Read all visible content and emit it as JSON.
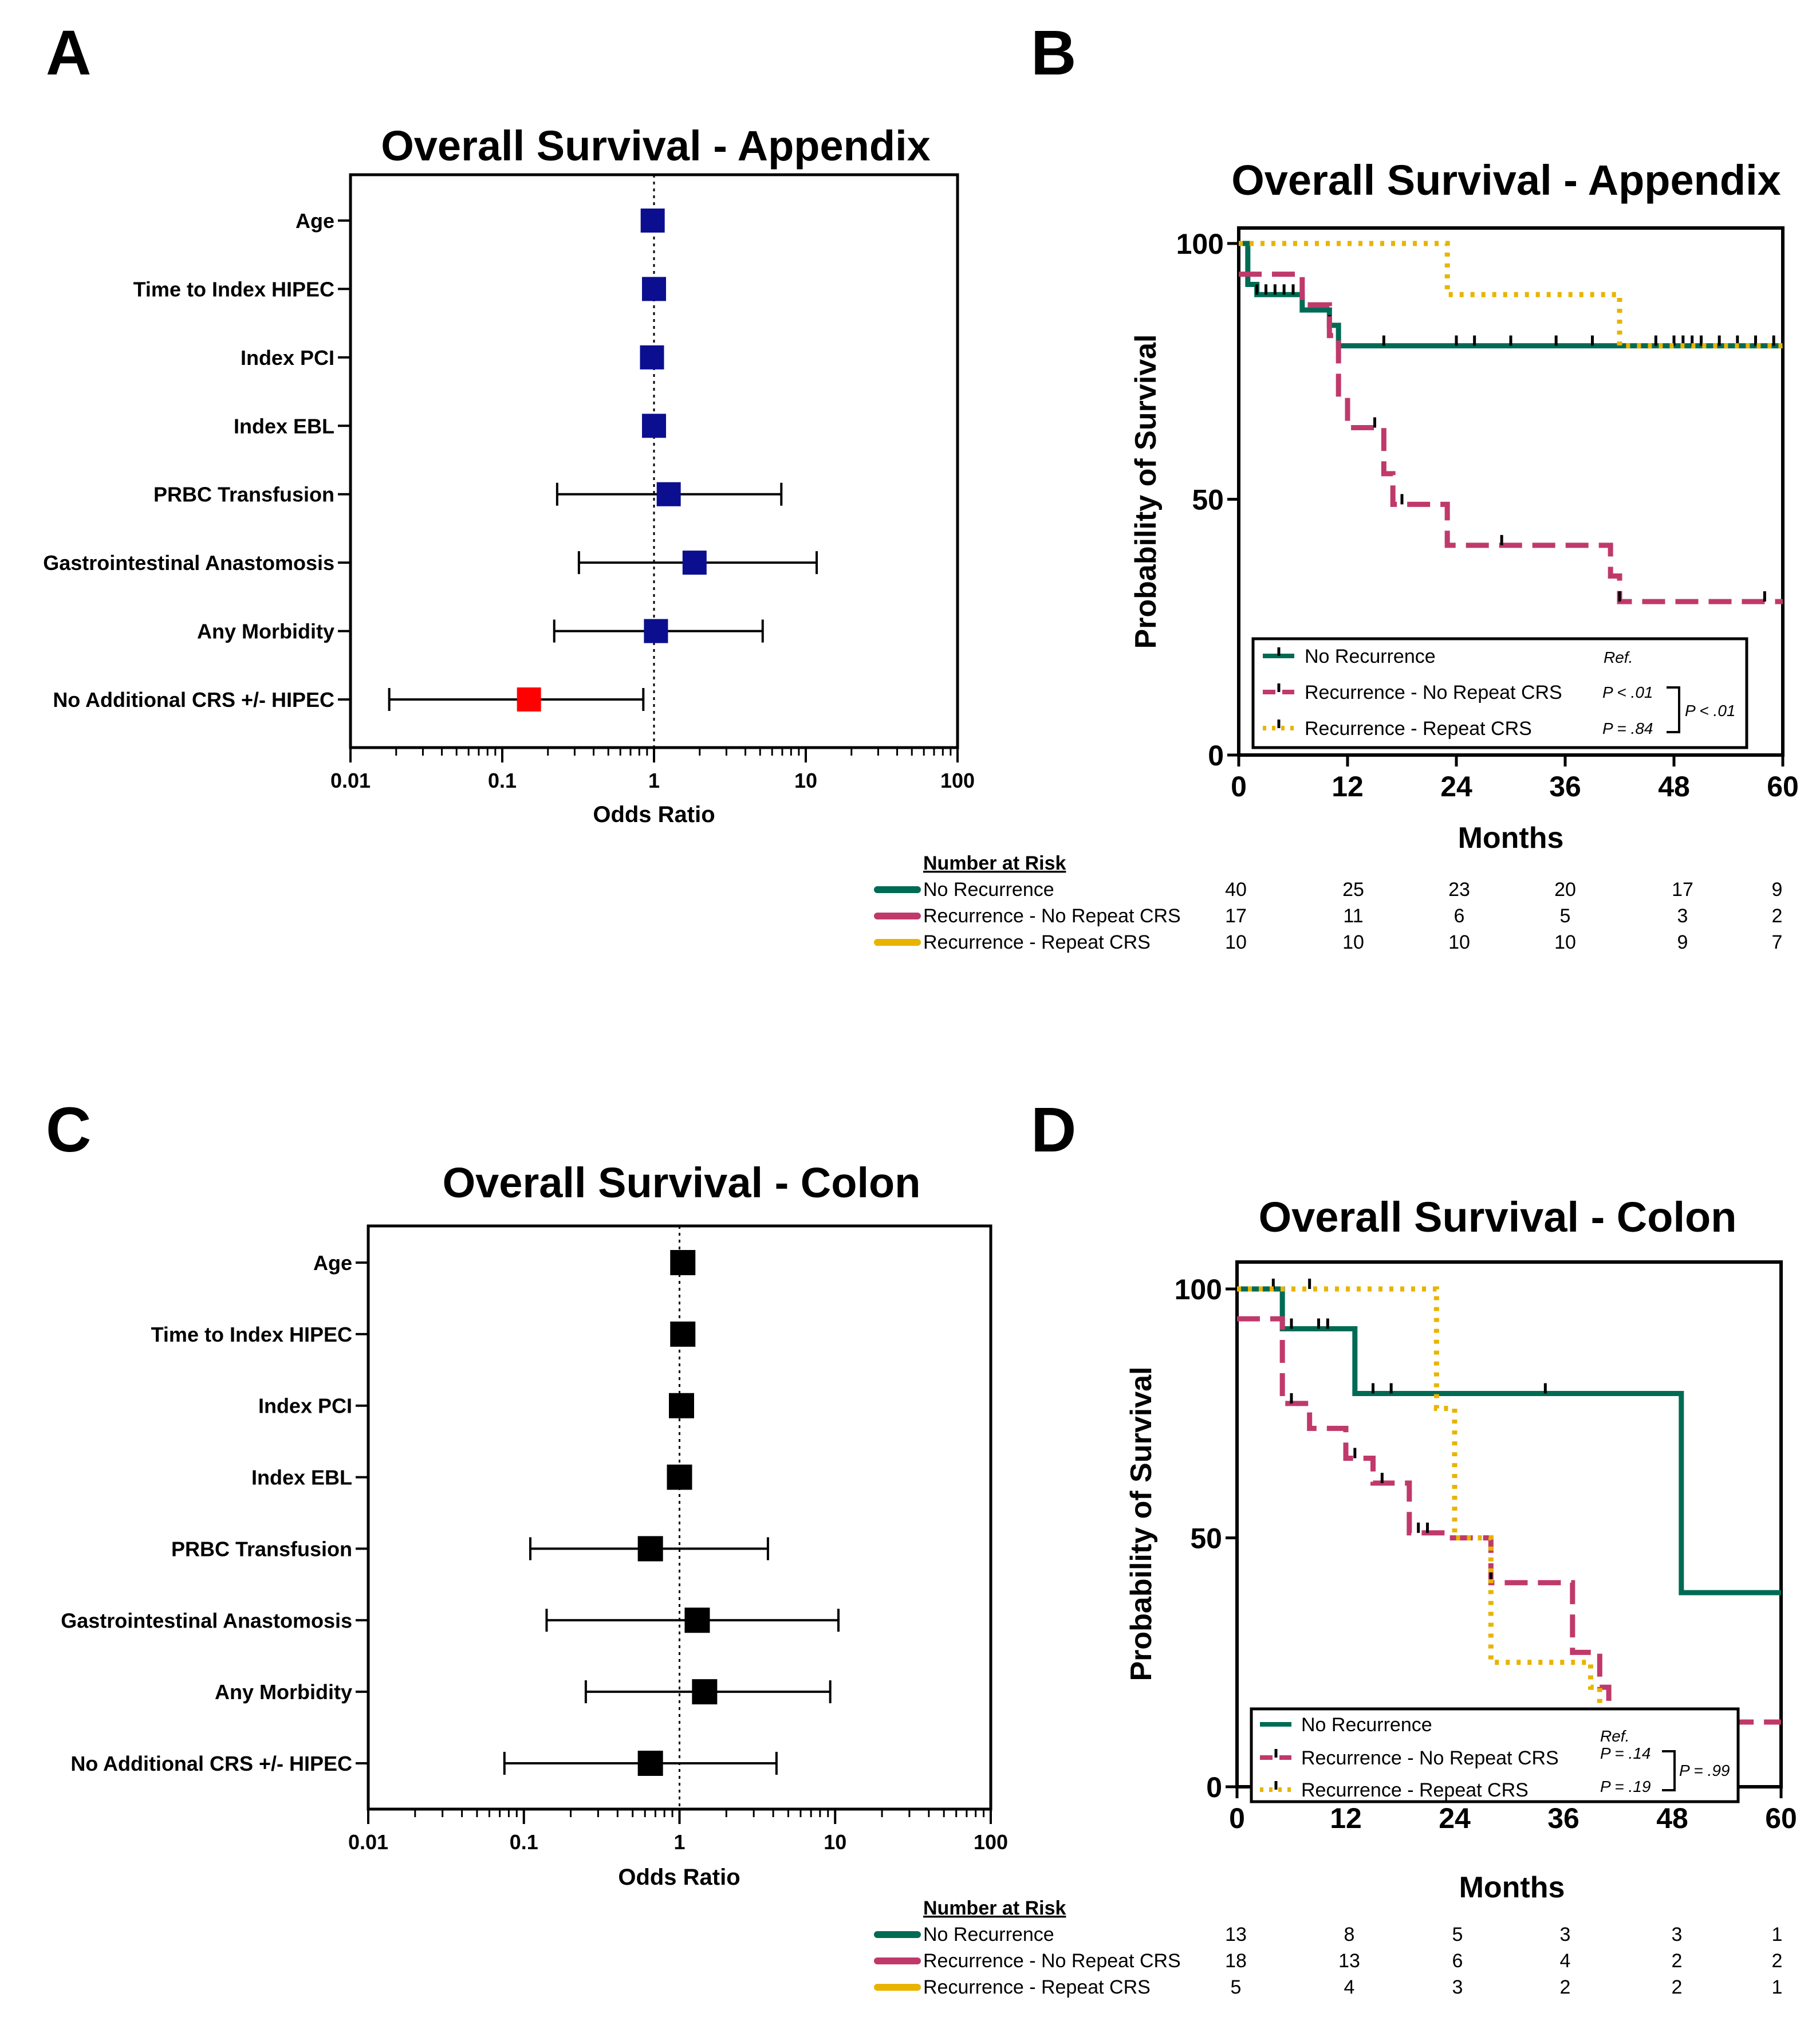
{
  "panels": {
    "A": {
      "letter": "A",
      "title": "Overall Survival - Appendix",
      "x_axis_title": "Odds Ratio",
      "x_ticks": [
        "0.01",
        "0.1",
        "1",
        "10",
        "100"
      ]
    },
    "B": {
      "letter": "B",
      "title": "Overall Survival - Appendix",
      "x_axis_title": "Months",
      "y_axis_title": "Probability of Survival",
      "x_ticks": [
        "0",
        "12",
        "24",
        "36",
        "48",
        "60"
      ],
      "y_ticks": [
        "0",
        "50",
        "100"
      ],
      "legend": [
        {
          "label": "No Recurrence",
          "p": "Ref."
        },
        {
          "label": "Recurrence - No Repeat CRS",
          "p": "P < .01"
        },
        {
          "label": "Recurrence - Repeat CRS",
          "p": "P = .84"
        }
      ],
      "bracket_p": "P < .01",
      "risk_title": "Number at Risk",
      "risk_rows": [
        {
          "label": "No Recurrence",
          "values": [
            "40",
            "25",
            "23",
            "20",
            "17",
            "9"
          ]
        },
        {
          "label": "Recurrence - No Repeat CRS",
          "values": [
            "17",
            "11",
            "6",
            "5",
            "3",
            "2"
          ]
        },
        {
          "label": "Recurrence - Repeat CRS",
          "values": [
            "10",
            "10",
            "10",
            "10",
            "9",
            "7"
          ]
        }
      ]
    },
    "C": {
      "letter": "C",
      "title": "Overall Survival - Colon",
      "x_axis_title": "Odds Ratio",
      "x_ticks": [
        "0.01",
        "0.1",
        "1",
        "10",
        "100"
      ]
    },
    "D": {
      "letter": "D",
      "title": "Overall Survival - Colon",
      "x_axis_title": "Months",
      "y_axis_title": "Probability of Survival",
      "x_ticks": [
        "0",
        "12",
        "24",
        "36",
        "48",
        "60"
      ],
      "y_ticks": [
        "0",
        "50",
        "100"
      ],
      "legend": [
        {
          "label": "No Recurrence",
          "p": "Ref."
        },
        {
          "label": "Recurrence - No Repeat CRS",
          "p": "P = .14"
        },
        {
          "label": "Recurrence - Repeat CRS",
          "p": "P = .19"
        }
      ],
      "bracket_p": "P = .99",
      "risk_title": "Number at Risk",
      "risk_rows": [
        {
          "label": "No Recurrence",
          "values": [
            "13",
            "8",
            "5",
            "3",
            "3",
            "1"
          ]
        },
        {
          "label": "Recurrence - No Repeat CRS",
          "values": [
            "18",
            "13",
            "6",
            "4",
            "2",
            "2"
          ]
        },
        {
          "label": "Recurrence - Repeat CRS",
          "values": [
            "5",
            "4",
            "3",
            "2",
            "2",
            "1"
          ]
        }
      ]
    }
  },
  "colors": {
    "no_recurrence": "#006b54",
    "recurrence_no_repeat": "#c0396b",
    "recurrence_repeat": "#e8b400",
    "appendix_marker": "#0b0f8f",
    "appendix_sig_marker": "#ff0000",
    "colon_marker": "#000000"
  },
  "chart_data": [
    {
      "type": "scatter",
      "subtype": "forest",
      "title": "Overall Survival - Appendix",
      "xlabel": "Odds Ratio",
      "xscale": "log",
      "xlim": [
        0.01,
        100
      ],
      "reference_line": 1,
      "categories": [
        "Age",
        "Time to Index HIPEC",
        "Index PCI",
        "Index EBL",
        "PRBC Transfusion",
        "Gastrointestinal Anastomosis",
        "Any Morbidity",
        "No Additional CRS +/- HIPEC"
      ],
      "odds_ratio": [
        0.98,
        1.0,
        0.97,
        1.0,
        1.25,
        1.85,
        1.03,
        0.15
      ],
      "ci_low": [
        null,
        null,
        null,
        null,
        0.23,
        0.32,
        0.22,
        0.018
      ],
      "ci_high": [
        null,
        null,
        null,
        null,
        6.9,
        11.8,
        5.2,
        0.85
      ],
      "significant": [
        false,
        false,
        false,
        false,
        false,
        false,
        false,
        true
      ]
    },
    {
      "type": "line",
      "subtype": "kaplan-meier",
      "title": "Overall Survival - Appendix",
      "xlabel": "Months",
      "ylabel": "Probability of Survival",
      "xlim": [
        0,
        60
      ],
      "ylim": [
        0,
        100
      ],
      "series": [
        {
          "name": "No Recurrence",
          "steps": [
            [
              0,
              100
            ],
            [
              1,
              92
            ],
            [
              2,
              90
            ],
            [
              7,
              87
            ],
            [
              10,
              84
            ],
            [
              11,
              80
            ],
            [
              60,
              80
            ]
          ],
          "censor_times": [
            2,
            3,
            4,
            5,
            6,
            10,
            16,
            24,
            26,
            30,
            35,
            39,
            46,
            48,
            49,
            50,
            51,
            53,
            55,
            57,
            59,
            60
          ]
        },
        {
          "name": "Recurrence - No Repeat CRS",
          "steps": [
            [
              0,
              94
            ],
            [
              3,
              94
            ],
            [
              7,
              88
            ],
            [
              10,
              82
            ],
            [
              11,
              70
            ],
            [
              12,
              64
            ],
            [
              16,
              55
            ],
            [
              17,
              49
            ],
            [
              23,
              41
            ],
            [
              41,
              35
            ],
            [
              42,
              30
            ],
            [
              60,
              30
            ]
          ],
          "censor_times": [
            15,
            18,
            29,
            42,
            58
          ]
        },
        {
          "name": "Recurrence - Repeat CRS",
          "steps": [
            [
              0,
              100
            ],
            [
              23,
              90
            ],
            [
              42,
              80
            ],
            [
              60,
              80
            ]
          ],
          "censor_times": []
        }
      ]
    },
    {
      "type": "scatter",
      "subtype": "forest",
      "title": "Overall Survival - Colon",
      "xlabel": "Odds Ratio",
      "xscale": "log",
      "xlim": [
        0.01,
        100
      ],
      "reference_line": 1,
      "categories": [
        "Age",
        "Time to Index HIPEC",
        "Index PCI",
        "Index EBL",
        "PRBC Transfusion",
        "Gastrointestinal Anastomosis",
        "Any Morbidity",
        "No Additional CRS +/- HIPEC"
      ],
      "odds_ratio": [
        1.05,
        1.05,
        1.03,
        1.0,
        0.65,
        1.3,
        1.45,
        0.65
      ],
      "ci_low": [
        null,
        null,
        null,
        null,
        0.11,
        0.14,
        0.25,
        0.075
      ],
      "ci_high": [
        null,
        null,
        null,
        null,
        3.7,
        10.5,
        9.3,
        4.2
      ],
      "significant": [
        false,
        false,
        false,
        false,
        false,
        false,
        false,
        false
      ]
    },
    {
      "type": "line",
      "subtype": "kaplan-meier",
      "title": "Overall Survival - Colon",
      "xlabel": "Months",
      "ylabel": "Probability of Survival",
      "xlim": [
        0,
        60
      ],
      "ylim": [
        0,
        100
      ],
      "series": [
        {
          "name": "No Recurrence",
          "steps": [
            [
              0,
              100
            ],
            [
              5,
              92
            ],
            [
              13,
              79
            ],
            [
              49,
              39
            ],
            [
              60,
              39
            ]
          ],
          "censor_times": [
            4,
            6,
            9,
            10,
            15,
            17,
            34
          ]
        },
        {
          "name": "Recurrence - No Repeat CRS",
          "steps": [
            [
              0,
              94
            ],
            [
              2,
              94
            ],
            [
              5,
              77
            ],
            [
              8,
              72
            ],
            [
              12,
              66
            ],
            [
              15,
              61
            ],
            [
              19,
              51
            ],
            [
              23,
              50
            ],
            [
              28,
              41
            ],
            [
              37,
              27
            ],
            [
              40,
              20
            ],
            [
              41,
              13
            ],
            [
              60,
              13
            ]
          ],
          "censor_times": [
            6,
            13,
            16,
            20,
            21,
            28
          ]
        },
        {
          "name": "Recurrence - Repeat CRS",
          "steps": [
            [
              0,
              100
            ],
            [
              22,
              76
            ],
            [
              24,
              50
            ],
            [
              28,
              25
            ],
            [
              39,
              20
            ],
            [
              40,
              15
            ]
          ],
          "censor_times": [
            8
          ]
        }
      ]
    }
  ]
}
